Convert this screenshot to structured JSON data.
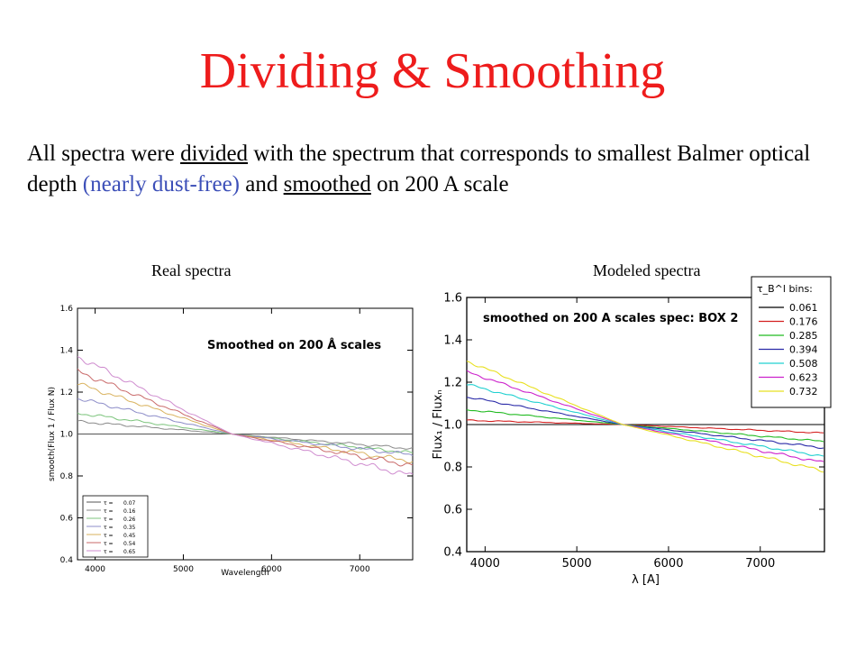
{
  "slide": {
    "title": "Dividing & Smoothing",
    "desc_1": "All spectra were ",
    "desc_divided": "divided",
    "desc_2": " with the spectrum that corresponds to smallest Balmer optical depth ",
    "desc_paren": "(nearly dust-free)",
    "desc_3": " and ",
    "desc_smoothed": "smoothed",
    "desc_4": " on 200 A scale",
    "caption_left": "Real spectra",
    "caption_right": "Modeled spectra"
  },
  "chart_data": [
    {
      "type": "line",
      "title": "Smoothed on 200 Å scales",
      "xlabel": "Wavelength",
      "ylabel": "smooth(Flux 1 / Flux N)",
      "xlim": [
        3800,
        7600
      ],
      "ylim": [
        0.4,
        1.6
      ],
      "xticks": [
        4000,
        5000,
        6000,
        7000
      ],
      "yticks": [
        0.4,
        0.6,
        0.8,
        1.0,
        1.2,
        1.4,
        1.6
      ],
      "grid": false,
      "legend_position": "bottom-left",
      "legend_symbol": "τ",
      "series": [
        {
          "name": "0.07",
          "color": "#555555",
          "x": [
            3800,
            5550,
            7600
          ],
          "y": [
            1.0,
            1.0,
            1.0
          ]
        },
        {
          "name": "0.16",
          "color": "#8a8a8a",
          "x": [
            3800,
            5550,
            7600
          ],
          "y": [
            1.06,
            1.0,
            0.93
          ]
        },
        {
          "name": "0.26",
          "color": "#7cc47c",
          "x": [
            3800,
            5550,
            7600
          ],
          "y": [
            1.1,
            1.0,
            0.91
          ]
        },
        {
          "name": "0.35",
          "color": "#8c8cc8",
          "x": [
            3800,
            5550,
            7600
          ],
          "y": [
            1.17,
            1.0,
            0.9
          ]
        },
        {
          "name": "0.45",
          "color": "#d9b25e",
          "x": [
            3800,
            5550,
            7600
          ],
          "y": [
            1.24,
            1.0,
            0.87
          ]
        },
        {
          "name": "0.54",
          "color": "#c96a6a",
          "x": [
            3800,
            5550,
            7600
          ],
          "y": [
            1.3,
            1.0,
            0.85
          ]
        },
        {
          "name": "0.65",
          "color": "#cf8ccf",
          "x": [
            3800,
            5550,
            7600
          ],
          "y": [
            1.37,
            1.0,
            0.8
          ]
        }
      ]
    },
    {
      "type": "line",
      "title": "smoothed on 200 A scales spec: BOX 2",
      "xlabel": "λ [A]",
      "ylabel": "Flux₁ / Fluxₙ",
      "xlim": [
        3800,
        7700
      ],
      "ylim": [
        0.4,
        1.6
      ],
      "xticks": [
        4000,
        5000,
        6000,
        7000
      ],
      "yticks": [
        0.4,
        0.6,
        0.8,
        1.0,
        1.2,
        1.4,
        1.6
      ],
      "grid": false,
      "legend_title": "τ_B^l bins:",
      "legend_position": "top-right",
      "series": [
        {
          "name": "0.061",
          "color": "#000000",
          "x": [
            3800,
            5500,
            7700
          ],
          "y": [
            1.0,
            1.0,
            1.0
          ]
        },
        {
          "name": "0.176",
          "color": "#d42020",
          "x": [
            3800,
            5500,
            7700
          ],
          "y": [
            1.02,
            1.0,
            0.96
          ]
        },
        {
          "name": "0.285",
          "color": "#22bb22",
          "x": [
            3800,
            5500,
            7700
          ],
          "y": [
            1.07,
            1.0,
            0.92
          ]
        },
        {
          "name": "0.394",
          "color": "#2a2aa8",
          "x": [
            3800,
            5500,
            7700
          ],
          "y": [
            1.13,
            1.0,
            0.89
          ]
        },
        {
          "name": "0.508",
          "color": "#20d0d0",
          "x": [
            3800,
            5500,
            7700
          ],
          "y": [
            1.19,
            1.0,
            0.85
          ]
        },
        {
          "name": "0.623",
          "color": "#cc22cc",
          "x": [
            3800,
            5500,
            7700
          ],
          "y": [
            1.25,
            1.0,
            0.82
          ]
        },
        {
          "name": "0.732",
          "color": "#e8e020",
          "x": [
            3800,
            5500,
            7700
          ],
          "y": [
            1.3,
            1.0,
            0.78
          ]
        }
      ]
    }
  ]
}
